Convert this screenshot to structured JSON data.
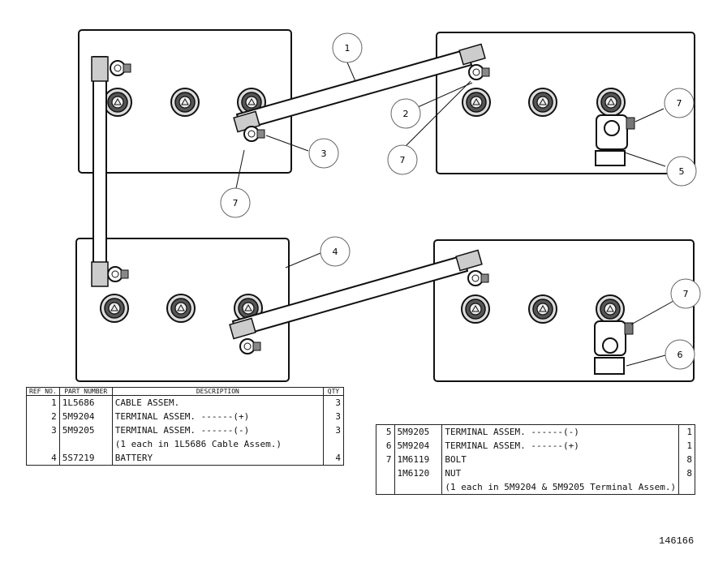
{
  "callouts": [
    "1",
    "2",
    "3",
    "4",
    "5",
    "6",
    "7"
  ],
  "battery_terminal_symbols": {
    "positive": "+",
    "negative": "−"
  },
  "left_table": {
    "headers": {
      "ref": "REF NO.",
      "part": "PART NUMBER",
      "desc": "DESCRIPTION",
      "qty": "QTY"
    },
    "rows": [
      {
        "ref": "1",
        "part": "1L5686",
        "desc": "CABLE ASSEM.",
        "qty": "3"
      },
      {
        "ref": "2",
        "part": "5M9204",
        "desc": "TERMINAL ASSEM. ------(+)",
        "qty": "3"
      },
      {
        "ref": "3",
        "part": "5M9205",
        "desc": "TERMINAL ASSEM. ------(-)",
        "qty": "3"
      },
      {
        "ref": "",
        "part": "",
        "desc": "(1 each in 1L5686 Cable Assem.)",
        "qty": ""
      },
      {
        "ref": "4",
        "part": "5S7219",
        "desc": "BATTERY",
        "qty": "4"
      }
    ]
  },
  "right_table": {
    "rows": [
      {
        "ref": "5",
        "part": "5M9205",
        "desc": "TERMINAL ASSEM. ------(-)",
        "qty": "1"
      },
      {
        "ref": "6",
        "part": "5M9204",
        "desc": "TERMINAL ASSEM. ------(+)",
        "qty": "1"
      },
      {
        "ref": "7",
        "part": "1M6119",
        "desc": "BOLT",
        "qty": "8"
      },
      {
        "ref": "",
        "part": "1M6120",
        "desc": "NUT",
        "qty": "8"
      },
      {
        "ref": "",
        "part": "",
        "desc": "(1 each in 5M9204 & 5M9205 Terminal Assem.)",
        "qty": ""
      }
    ]
  },
  "figure_id": "146166"
}
